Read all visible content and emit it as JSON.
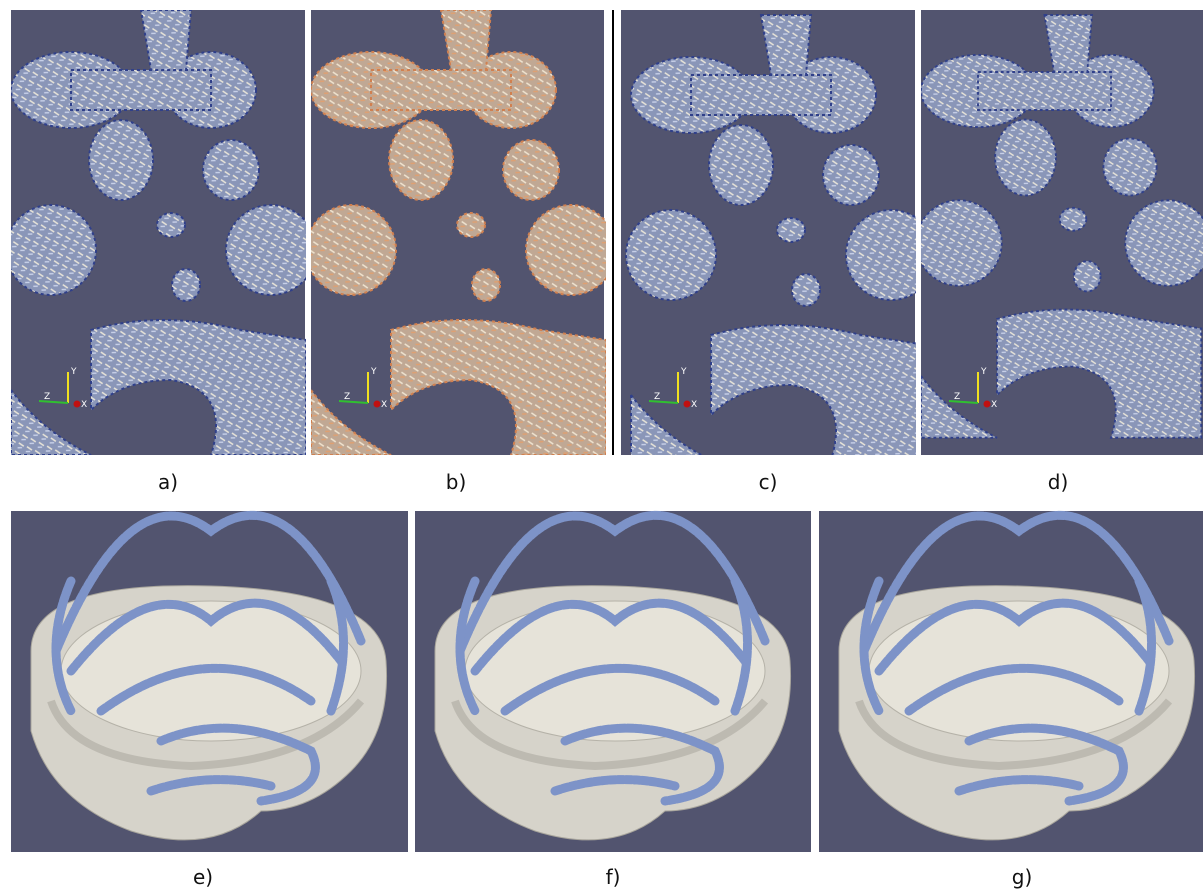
{
  "panels_top": [
    {
      "label": "a)",
      "axes": {
        "y": "Y",
        "z": "Z",
        "x": "X"
      }
    },
    {
      "label": "b)",
      "axes": {
        "y": "Y",
        "z": "Z",
        "x": "X"
      }
    },
    {
      "label": "c)",
      "axes": {
        "y": "Y",
        "z": "Z",
        "x": "X"
      }
    },
    {
      "label": "d)",
      "axes": {
        "y": "Y",
        "z": "Z",
        "x": "X"
      }
    }
  ],
  "panels_bottom": [
    {
      "label": "e)"
    },
    {
      "label": "f)"
    },
    {
      "label": "g)"
    }
  ]
}
